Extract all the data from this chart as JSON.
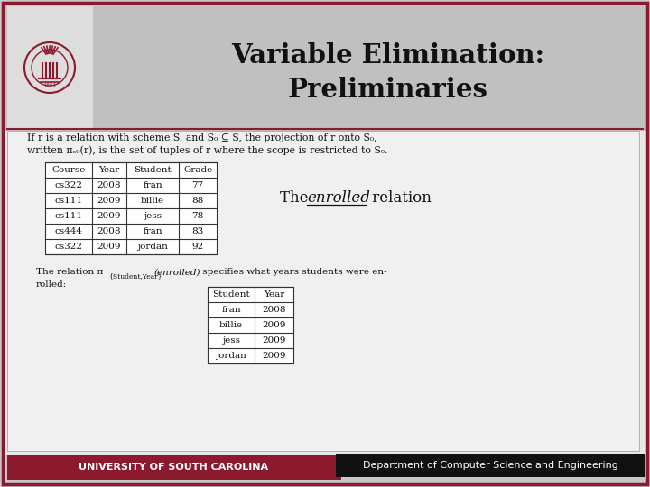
{
  "title_line1": "Variable Elimination:",
  "title_line2": "Preliminaries",
  "border_color": "#8b1a2e",
  "footer_left_bg": "#8b1a2e",
  "footer_right_bg": "#111111",
  "footer_left_text": "UNIVERSITY OF SOUTH CAROLINA",
  "footer_right_text": "Department of Computer Science and Engineering",
  "table1_headers": [
    "Course",
    "Year",
    "Student",
    "Grade"
  ],
  "table1_rows": [
    [
      "cs322",
      "2008",
      "fran",
      "77"
    ],
    [
      "cs111",
      "2009",
      "billie",
      "88"
    ],
    [
      "cs111",
      "2009",
      "jess",
      "78"
    ],
    [
      "cs444",
      "2008",
      "fran",
      "83"
    ],
    [
      "cs322",
      "2009",
      "jordan",
      "92"
    ]
  ],
  "table2_headers": [
    "Student",
    "Year"
  ],
  "table2_rows": [
    [
      "fran",
      "2008"
    ],
    [
      "billie",
      "2009"
    ],
    [
      "jess",
      "2009"
    ],
    [
      "jordan",
      "2009"
    ]
  ],
  "slide_bg": "#c8c8c8",
  "header_bg": "#c0c0c0",
  "content_bg": "#e8e8e8",
  "white_box_bg": "#f5f5f5"
}
